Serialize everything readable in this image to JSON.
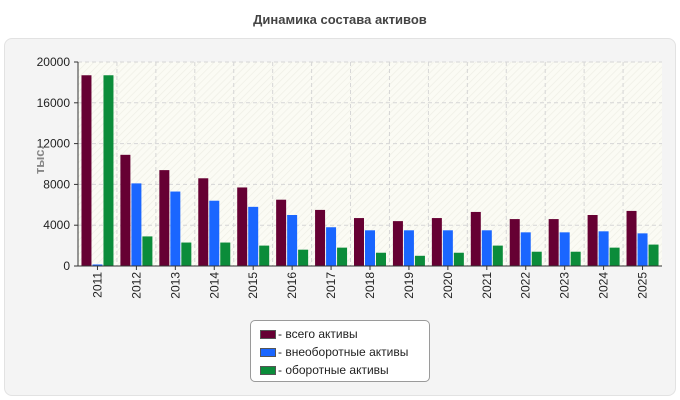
{
  "page_title": "Динамика состава активов",
  "chart_data": {
    "type": "bar",
    "title": "Динамика состава активов",
    "xlabel": "",
    "ylabel": "тыс.",
    "ylim": [
      0,
      20000
    ],
    "yticks": [
      0,
      4000,
      8000,
      12000,
      16000,
      20000
    ],
    "grid": true,
    "legend_position": "bottom",
    "categories": [
      "2011",
      "2012",
      "2013",
      "2014",
      "2015",
      "2016",
      "2017",
      "2018",
      "2019",
      "2020",
      "2021",
      "2022",
      "2023",
      "2024",
      "2025"
    ],
    "series": [
      {
        "name": "- всего активы",
        "color": "#660033",
        "values": [
          18700,
          10900,
          9400,
          8600,
          7700,
          6500,
          5500,
          4700,
          4400,
          4700,
          5300,
          4600,
          4600,
          5000,
          5400
        ]
      },
      {
        "name": "- внеоборотные активы",
        "color": "#1a66ff",
        "values": [
          150,
          8100,
          7300,
          6400,
          5800,
          5000,
          3800,
          3500,
          3500,
          3500,
          3500,
          3300,
          3300,
          3400,
          3200
        ]
      },
      {
        "name": "- оборотные активы",
        "color": "#0b8c3a",
        "values": [
          18700,
          2900,
          2300,
          2300,
          2000,
          1600,
          1800,
          1300,
          1000,
          1300,
          2000,
          1400,
          1400,
          1800,
          2100
        ]
      }
    ]
  }
}
